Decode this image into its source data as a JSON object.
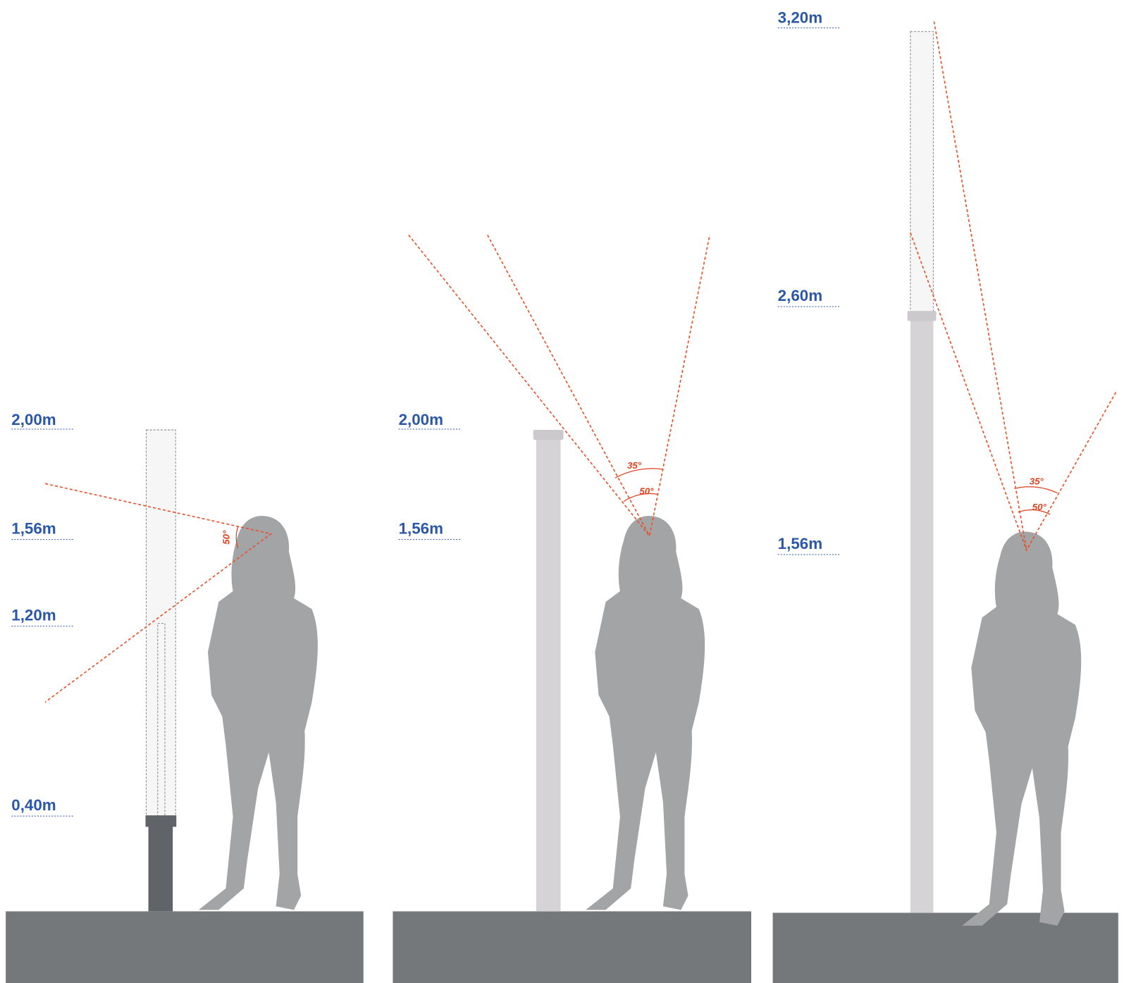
{
  "panels": [
    {
      "heights": [
        "2,00m",
        "1,56m",
        "1,20m",
        "0,40m"
      ],
      "angles": [
        "50°"
      ]
    },
    {
      "heights": [
        "2,00m",
        "1,56m"
      ],
      "angles": [
        "35°",
        "50°"
      ]
    },
    {
      "heights": [
        "3,20m",
        "2,60m",
        "1,56m"
      ],
      "angles": [
        "35°",
        "50°"
      ]
    }
  ]
}
